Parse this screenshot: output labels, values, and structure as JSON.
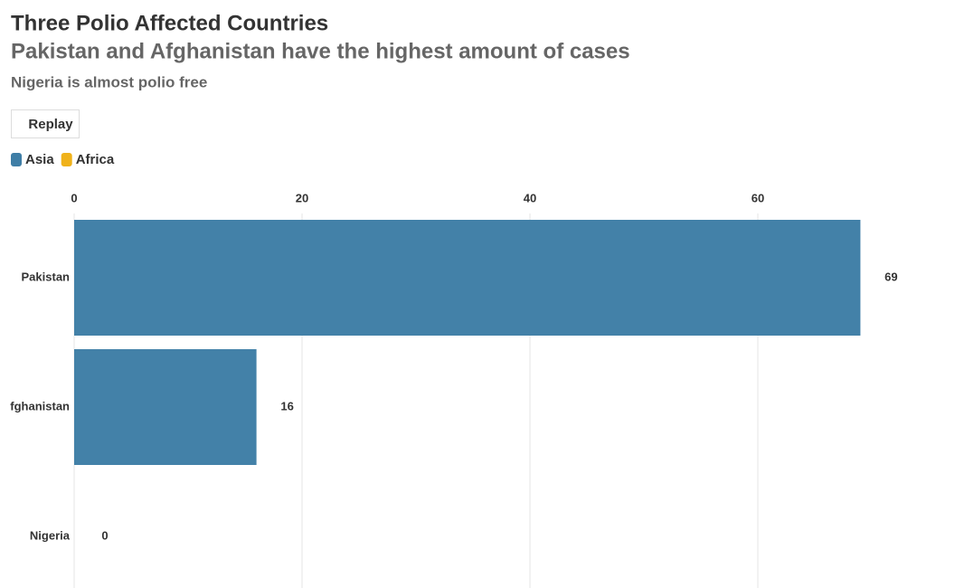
{
  "chart_data": {
    "type": "bar",
    "title": "Three Polio Affected Countries",
    "subtitle": "Pakistan and Afghanistan have the highest amount of cases",
    "note": "Nigeria is almost polio free",
    "button": "Replay",
    "categories": [
      "Pakistan",
      "fghanistan",
      "Nigeria"
    ],
    "series": [
      {
        "name": "Asia",
        "color": "#3f7ea6",
        "values": [
          69,
          16,
          null
        ]
      },
      {
        "name": "Africa",
        "color": "#f0b21a",
        "values": [
          null,
          null,
          0
        ]
      }
    ],
    "xlim": [
      0,
      70
    ],
    "xticks": [
      0,
      20,
      40,
      60
    ],
    "grid": true,
    "orientation": "horizontal"
  }
}
